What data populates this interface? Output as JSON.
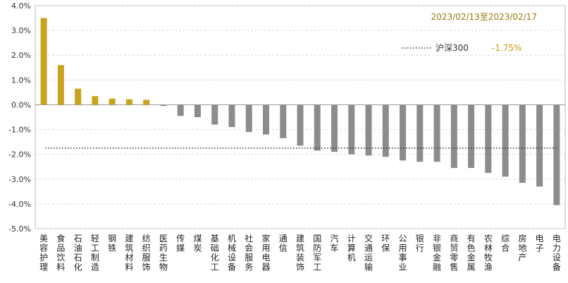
{
  "chart_data": {
    "type": "bar",
    "date_range": "2023/02/13至2023/02/17",
    "categories": [
      "美容护理",
      "食品饮料",
      "石油石化",
      "轻工制造",
      "钢铁",
      "建筑材料",
      "纺织服饰",
      "医药生物",
      "传媒",
      "煤炭",
      "基础化工",
      "机械设备",
      "社会服务",
      "家用电器",
      "通信",
      "建筑装饰",
      "国防军工",
      "汽车",
      "计算机",
      "交通运输",
      "环保",
      "公用事业",
      "银行",
      "非银金融",
      "商贸零售",
      "有色金属",
      "农林牧渔",
      "综合",
      "房地产",
      "电子",
      "电力设备"
    ],
    "values": [
      3.5,
      1.6,
      0.65,
      0.35,
      0.25,
      0.22,
      0.2,
      -0.05,
      -0.45,
      -0.5,
      -0.8,
      -0.9,
      -1.1,
      -1.2,
      -1.35,
      -1.65,
      -1.85,
      -1.9,
      -2.0,
      -2.05,
      -2.1,
      -2.25,
      -2.3,
      -2.3,
      -2.55,
      -2.55,
      -2.75,
      -2.9,
      -3.15,
      -3.3,
      -4.05
    ],
    "ylim": [
      -5.0,
      4.0
    ],
    "yticks": [
      "4.0%",
      "3.0%",
      "2.0%",
      "1.0%",
      "0.0%",
      "-1.0%",
      "-2.0%",
      "-3.0%",
      "-4.0%",
      "-5.0%"
    ],
    "reference_line": {
      "name": "沪深300",
      "value": -1.75,
      "label": "-1.75%"
    },
    "grid": true,
    "legend_position": "top-right",
    "colors": {
      "positive": "#c9a21e",
      "negative": "#8c8c8c",
      "reference": "#333333",
      "date": "#9a7a10",
      "ref_value": "#c89a10"
    }
  }
}
